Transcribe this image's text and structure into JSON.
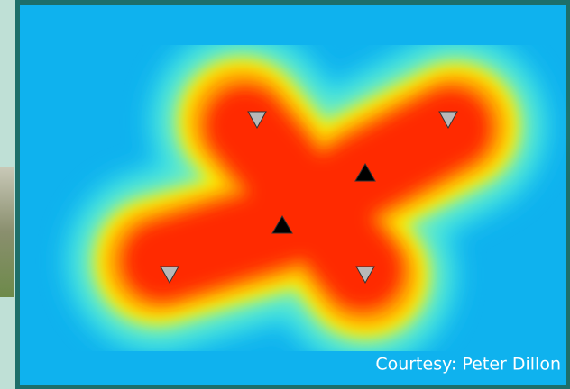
{
  "credit": "Courtesy: Peter Dillon"
}
